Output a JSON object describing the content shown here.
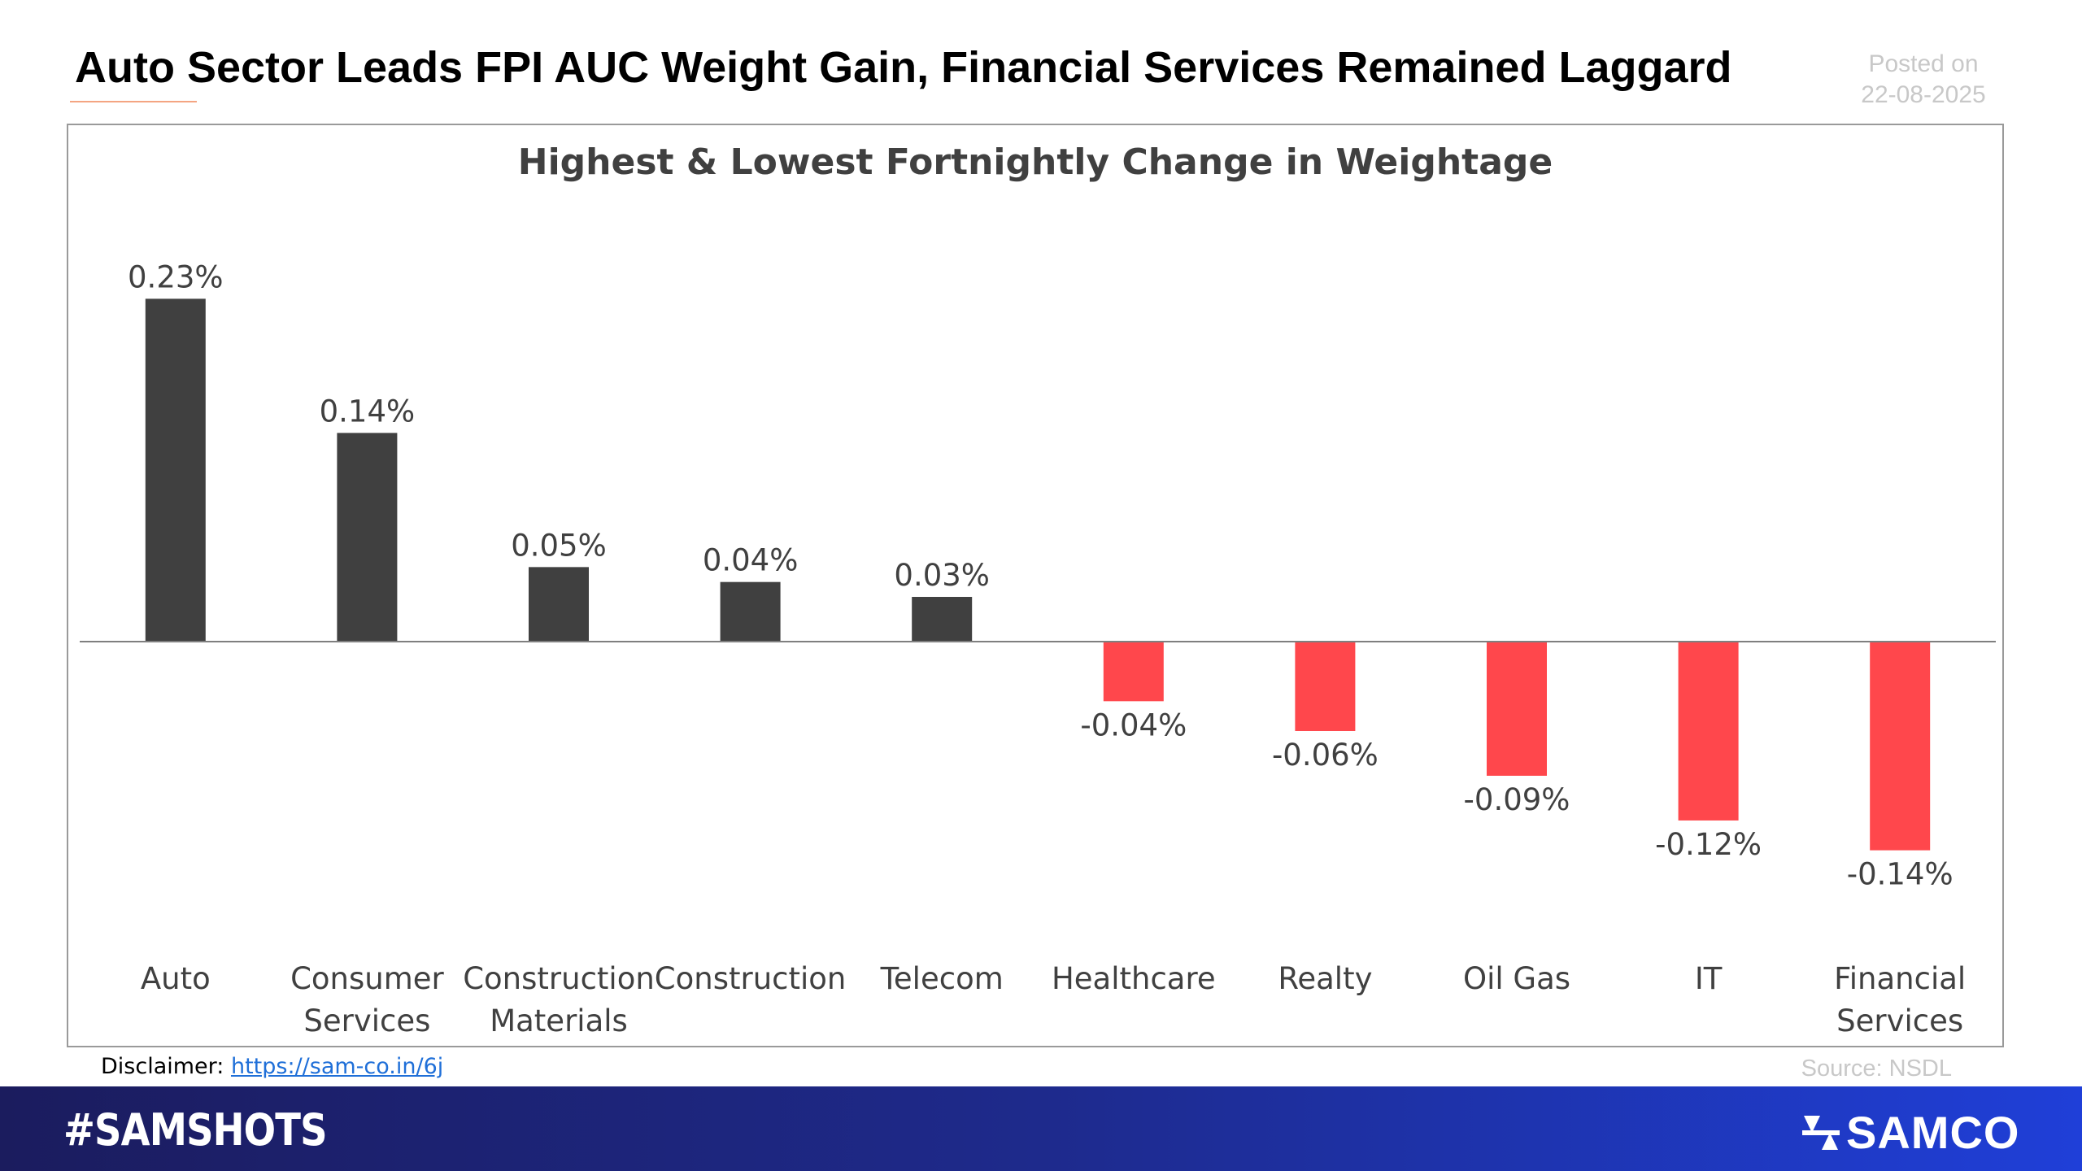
{
  "headline": "Auto Sector Leads FPI AUC Weight Gain, Financial Services Remained Laggard",
  "posted": {
    "label": "Posted on",
    "date": "22-08-2025"
  },
  "disclaimer": {
    "label": "Disclaimer:",
    "link_text": "https://sam-co.in/6j"
  },
  "source": "Source: NSDL",
  "footer": {
    "hashtag": "#SAMSHOTS",
    "brand": "SAMCO"
  },
  "colors": {
    "positive": "#404040",
    "negative": "#ff474c",
    "axis": "#7f7f7f"
  },
  "chart_data": {
    "type": "bar",
    "title": "Highest & Lowest Fortnightly Change in Weightage",
    "xlabel": "",
    "ylabel": "",
    "unit": "%",
    "grid": false,
    "legend": "none",
    "ylim": [
      -0.2,
      0.26
    ],
    "categories": [
      [
        "Auto"
      ],
      [
        "Consumer",
        "Services"
      ],
      [
        "Construction",
        "Materials"
      ],
      [
        "Construction"
      ],
      [
        "Telecom"
      ],
      [
        "Healthcare"
      ],
      [
        "Realty"
      ],
      [
        "Oil Gas"
      ],
      [
        "IT"
      ],
      [
        "Financial",
        "Services"
      ]
    ],
    "values": [
      0.23,
      0.14,
      0.05,
      0.04,
      0.03,
      -0.04,
      -0.06,
      -0.09,
      -0.12,
      -0.14
    ],
    "labels": [
      "0.23%",
      "0.14%",
      "0.05%",
      "0.04%",
      "0.03%",
      "-0.04%",
      "-0.06%",
      "-0.09%",
      "-0.12%",
      "-0.14%"
    ]
  }
}
